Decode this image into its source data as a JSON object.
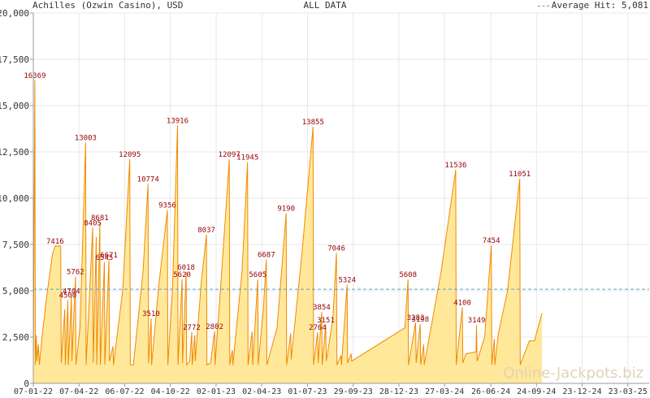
{
  "header": {
    "title": "Achilles (Ozwin Casino), USD",
    "center": "ALL DATA",
    "legend": "Average Hit: 5,081"
  },
  "watermark": "Online-Jackpots.biz",
  "colors": {
    "area_fill": "#ffe89a",
    "line": "#f08a00",
    "label": "#990000",
    "average": "#5f9fc0",
    "grid": "#e8e8e8"
  },
  "chart_data": {
    "type": "area",
    "title": "Achilles (Ozwin Casino), USD",
    "subtitle": "ALL DATA",
    "ylim": [
      0,
      20000
    ],
    "yticks": [
      0,
      2500,
      5000,
      7500,
      10000,
      12500,
      15000,
      17500,
      20000
    ],
    "ytick_labels": [
      "0",
      "2,500",
      "5,000",
      "7,500",
      "10,000",
      "12,500",
      "15,000",
      "17,500",
      "20,000"
    ],
    "x_start": "2022-01-07",
    "x_end": "2025-05-04",
    "xticks": [
      "2022-01-07",
      "2022-04-07",
      "2022-07-06",
      "2022-10-04",
      "2023-01-02",
      "2023-04-02",
      "2023-07-01",
      "2023-09-29",
      "2023-12-28",
      "2024-03-27",
      "2024-06-26",
      "2024-09-24",
      "2024-12-23",
      "2025-03-23"
    ],
    "xtick_labels": [
      "07-01-22",
      "07-04-22",
      "06-07-22",
      "04-10-22",
      "02-01-23",
      "02-04-23",
      "01-07-23",
      "29-09-23",
      "28-12-23",
      "27-03-24",
      "26-06-24",
      "24-09-24",
      "23-12-24",
      "23-03-25"
    ],
    "average": 5081,
    "grid": true,
    "legend": "top-right",
    "series": [
      {
        "name": "Achilles (Ozwin Casino), USD",
        "points": [
          [
            "2022-01-07",
            1000
          ],
          [
            "2022-01-10",
            16369
          ],
          [
            "2022-01-11",
            1000
          ],
          [
            "2022-01-13",
            2600
          ],
          [
            "2022-01-14",
            1200
          ],
          [
            "2022-01-17",
            2100
          ],
          [
            "2022-01-19",
            1000
          ],
          [
            "2022-01-23",
            2200
          ],
          [
            "2022-02-02",
            4600
          ],
          [
            "2022-02-14",
            7000
          ],
          [
            "2022-02-19",
            7416
          ],
          [
            "2022-03-02",
            7416
          ],
          [
            "2022-03-03",
            1100
          ],
          [
            "2022-03-10",
            4000
          ],
          [
            "2022-03-11",
            1000
          ],
          [
            "2022-03-16",
            4500
          ],
          [
            "2022-03-17",
            1000
          ],
          [
            "2022-03-23",
            4704
          ],
          [
            "2022-03-24",
            1200
          ],
          [
            "2022-03-31",
            5762
          ],
          [
            "2022-04-01",
            1000
          ],
          [
            "2022-04-09",
            3000
          ],
          [
            "2022-04-20",
            13003
          ],
          [
            "2022-04-21",
            1000
          ],
          [
            "2022-05-04",
            8405
          ],
          [
            "2022-05-05",
            1100
          ],
          [
            "2022-05-11",
            7900
          ],
          [
            "2022-05-12",
            1000
          ],
          [
            "2022-05-18",
            8681
          ],
          [
            "2022-05-19",
            1000
          ],
          [
            "2022-05-27",
            6545
          ],
          [
            "2022-05-28",
            1000
          ],
          [
            "2022-06-05",
            6671
          ],
          [
            "2022-06-06",
            1200
          ],
          [
            "2022-06-13",
            2000
          ],
          [
            "2022-06-14",
            1000
          ],
          [
            "2022-07-02",
            5000
          ],
          [
            "2022-07-16",
            12095
          ],
          [
            "2022-07-17",
            1000
          ],
          [
            "2022-07-23",
            1000
          ],
          [
            "2022-08-11",
            6000
          ],
          [
            "2022-08-21",
            10774
          ],
          [
            "2022-08-22",
            1100
          ],
          [
            "2022-08-27",
            3510
          ],
          [
            "2022-08-28",
            1000
          ],
          [
            "2022-09-10",
            5000
          ],
          [
            "2022-09-28",
            9356
          ],
          [
            "2022-09-29",
            1000
          ],
          [
            "2022-10-08",
            5000
          ],
          [
            "2022-10-18",
            13916
          ],
          [
            "2022-10-19",
            1000
          ],
          [
            "2022-10-27",
            5620
          ],
          [
            "2022-10-28",
            1100
          ],
          [
            "2022-11-04",
            6018
          ],
          [
            "2022-11-05",
            1000
          ],
          [
            "2022-11-11",
            1200
          ],
          [
            "2022-11-15",
            2772
          ],
          [
            "2022-11-16",
            1000
          ],
          [
            "2022-11-21",
            2600
          ],
          [
            "2022-11-22",
            1200
          ],
          [
            "2022-12-04",
            5500
          ],
          [
            "2022-12-14",
            8037
          ],
          [
            "2022-12-15",
            1000
          ],
          [
            "2022-12-22",
            1100
          ],
          [
            "2022-12-30",
            2802
          ],
          [
            "2022-12-31",
            1000
          ],
          [
            "2023-01-13",
            6000
          ],
          [
            "2023-01-28",
            12097
          ],
          [
            "2023-01-29",
            1000
          ],
          [
            "2023-02-03",
            1800
          ],
          [
            "2023-02-04",
            1000
          ],
          [
            "2023-02-22",
            6000
          ],
          [
            "2023-03-05",
            11945
          ],
          [
            "2023-03-06",
            1000
          ],
          [
            "2023-03-14",
            2800
          ],
          [
            "2023-03-15",
            1000
          ],
          [
            "2023-03-25",
            5605
          ],
          [
            "2023-03-26",
            1000
          ],
          [
            "2023-04-05",
            4000
          ],
          [
            "2023-04-11",
            6687
          ],
          [
            "2023-04-12",
            1000
          ],
          [
            "2023-05-02",
            3000
          ],
          [
            "2023-05-20",
            9190
          ],
          [
            "2023-05-21",
            1000
          ],
          [
            "2023-05-29",
            2700
          ],
          [
            "2023-05-30",
            1300
          ],
          [
            "2023-06-20",
            7000
          ],
          [
            "2023-07-12",
            13855
          ],
          [
            "2023-07-13",
            1000
          ],
          [
            "2023-07-21",
            2764
          ],
          [
            "2023-07-22",
            1100
          ],
          [
            "2023-07-29",
            3854
          ],
          [
            "2023-07-30",
            1000
          ],
          [
            "2023-08-06",
            3151
          ],
          [
            "2023-08-07",
            1200
          ],
          [
            "2023-08-20",
            3500
          ],
          [
            "2023-08-27",
            7046
          ],
          [
            "2023-08-28",
            1000
          ],
          [
            "2023-09-05",
            1500
          ],
          [
            "2023-09-06",
            1000
          ],
          [
            "2023-09-17",
            5324
          ],
          [
            "2023-09-18",
            1100
          ],
          [
            "2023-09-25",
            1600
          ],
          [
            "2023-09-26",
            1200
          ],
          [
            "2024-01-09",
            3000
          ],
          [
            "2024-01-15",
            5608
          ],
          [
            "2024-01-16",
            1000
          ],
          [
            "2024-01-30",
            3283
          ],
          [
            "2024-01-31",
            1100
          ],
          [
            "2024-02-08",
            3198
          ],
          [
            "2024-02-09",
            1000
          ],
          [
            "2024-02-15",
            2100
          ],
          [
            "2024-02-16",
            1000
          ],
          [
            "2024-03-20",
            6000
          ],
          [
            "2024-04-18",
            11536
          ],
          [
            "2024-04-19",
            1000
          ],
          [
            "2024-05-01",
            4100
          ],
          [
            "2024-05-02",
            1100
          ],
          [
            "2024-05-08",
            1600
          ],
          [
            "2024-05-28",
            1700
          ],
          [
            "2024-05-29",
            3149
          ],
          [
            "2024-05-30",
            1200
          ],
          [
            "2024-06-14",
            2500
          ],
          [
            "2024-06-27",
            7454
          ],
          [
            "2024-06-28",
            1000
          ],
          [
            "2024-07-03",
            2400
          ],
          [
            "2024-07-04",
            1000
          ],
          [
            "2024-07-11",
            2700
          ],
          [
            "2024-07-29",
            5000
          ],
          [
            "2024-08-22",
            11051
          ],
          [
            "2024-08-23",
            1000
          ],
          [
            "2024-09-10",
            2300
          ],
          [
            "2024-09-20",
            2300
          ],
          [
            "2024-10-05",
            3800
          ]
        ],
        "labels": [
          [
            "2022-01-10",
            16369
          ],
          [
            "2022-02-19",
            7416
          ],
          [
            "2022-03-16",
            4500
          ],
          [
            "2022-03-23",
            4704
          ],
          [
            "2022-03-31",
            5762
          ],
          [
            "2022-04-20",
            13003
          ],
          [
            "2022-05-04",
            8405
          ],
          [
            "2022-05-18",
            8681
          ],
          [
            "2022-05-27",
            6545
          ],
          [
            "2022-06-05",
            6671
          ],
          [
            "2022-07-16",
            12095
          ],
          [
            "2022-08-21",
            10774
          ],
          [
            "2022-08-27",
            3510
          ],
          [
            "2022-09-28",
            9356
          ],
          [
            "2022-10-18",
            13916
          ],
          [
            "2022-10-27",
            5620
          ],
          [
            "2022-11-04",
            6018
          ],
          [
            "2022-11-15",
            2772
          ],
          [
            "2022-12-14",
            8037
          ],
          [
            "2022-12-30",
            2802
          ],
          [
            "2023-01-28",
            12097
          ],
          [
            "2023-03-05",
            11945
          ],
          [
            "2023-03-25",
            5605
          ],
          [
            "2023-04-11",
            6687
          ],
          [
            "2023-05-20",
            9190
          ],
          [
            "2023-07-12",
            13855
          ],
          [
            "2023-07-21",
            2764
          ],
          [
            "2023-07-29",
            3854
          ],
          [
            "2023-08-06",
            3151
          ],
          [
            "2023-08-27",
            7046
          ],
          [
            "2023-09-17",
            5324
          ],
          [
            "2024-01-15",
            5608
          ],
          [
            "2024-01-30",
            3283
          ],
          [
            "2024-02-08",
            3198
          ],
          [
            "2024-04-18",
            11536
          ],
          [
            "2024-05-01",
            4100
          ],
          [
            "2024-05-29",
            3149
          ],
          [
            "2024-06-27",
            7454
          ],
          [
            "2024-08-22",
            11051
          ]
        ]
      }
    ]
  }
}
